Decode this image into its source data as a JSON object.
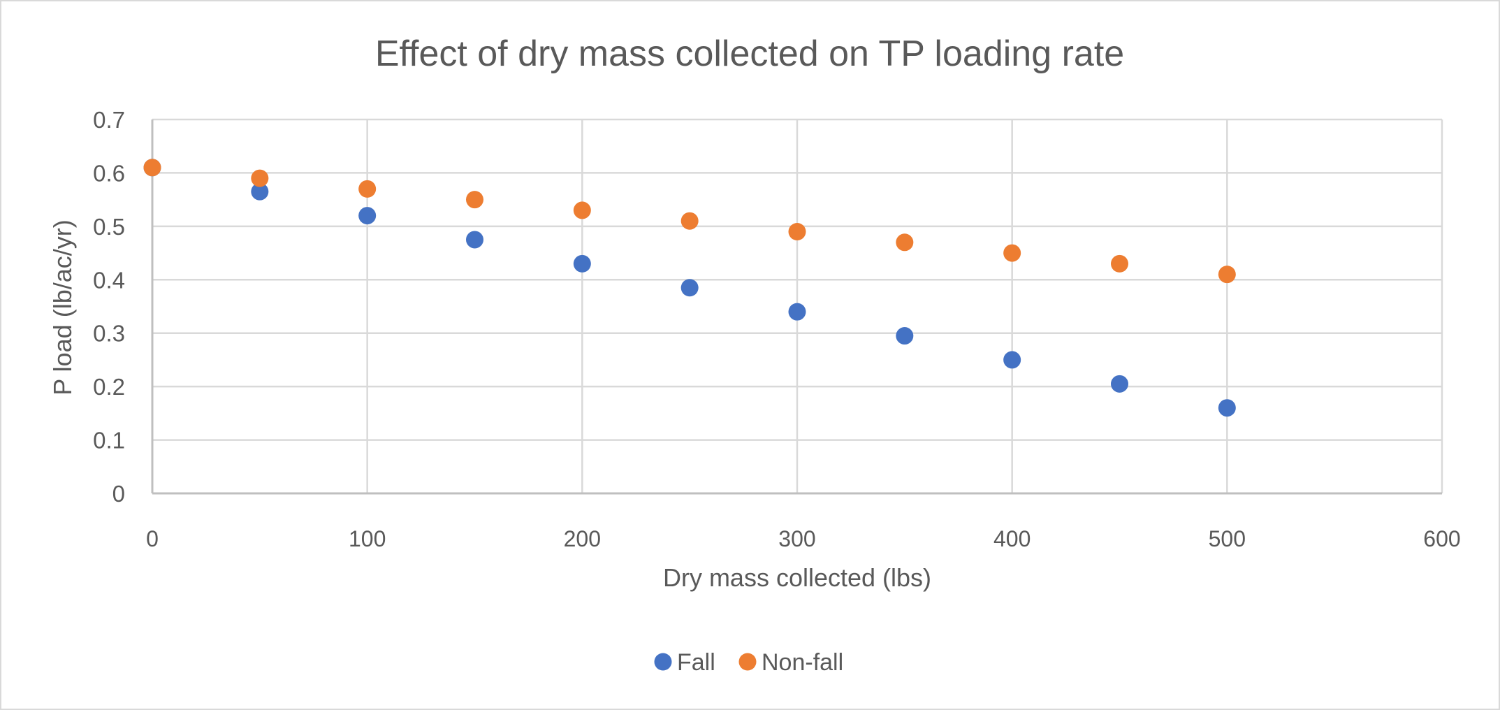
{
  "chart_data": {
    "type": "scatter",
    "title": "Effect of dry mass collected on TP loading rate",
    "xlabel": "Dry mass collected (lbs)",
    "ylabel": "P load (lb/ac/yr)",
    "xlim": [
      0,
      600
    ],
    "ylim": [
      0,
      0.7
    ],
    "xticks": [
      0,
      100,
      200,
      300,
      400,
      500,
      600
    ],
    "xtick_labels": [
      "0",
      "100",
      "200",
      "300",
      "400",
      "500",
      "600"
    ],
    "yticks": [
      0,
      0.1,
      0.2,
      0.3,
      0.4,
      0.5,
      0.6,
      0.7
    ],
    "ytick_labels": [
      "0",
      "0.1",
      "0.2",
      "0.3",
      "0.4",
      "0.5",
      "0.6",
      "0.7"
    ],
    "grid": true,
    "legend_position": "bottom",
    "series": [
      {
        "name": "Fall",
        "color": "#4472C4",
        "x": [
          0,
          50,
          100,
          150,
          200,
          250,
          300,
          350,
          400,
          450,
          500
        ],
        "y": [
          0.61,
          0.565,
          0.52,
          0.475,
          0.43,
          0.385,
          0.34,
          0.295,
          0.25,
          0.205,
          0.16
        ]
      },
      {
        "name": "Non-fall",
        "color": "#ED7D31",
        "x": [
          0,
          50,
          100,
          150,
          200,
          250,
          300,
          350,
          400,
          450,
          500
        ],
        "y": [
          0.61,
          0.59,
          0.57,
          0.55,
          0.53,
          0.51,
          0.49,
          0.47,
          0.45,
          0.43,
          0.41
        ]
      }
    ]
  }
}
